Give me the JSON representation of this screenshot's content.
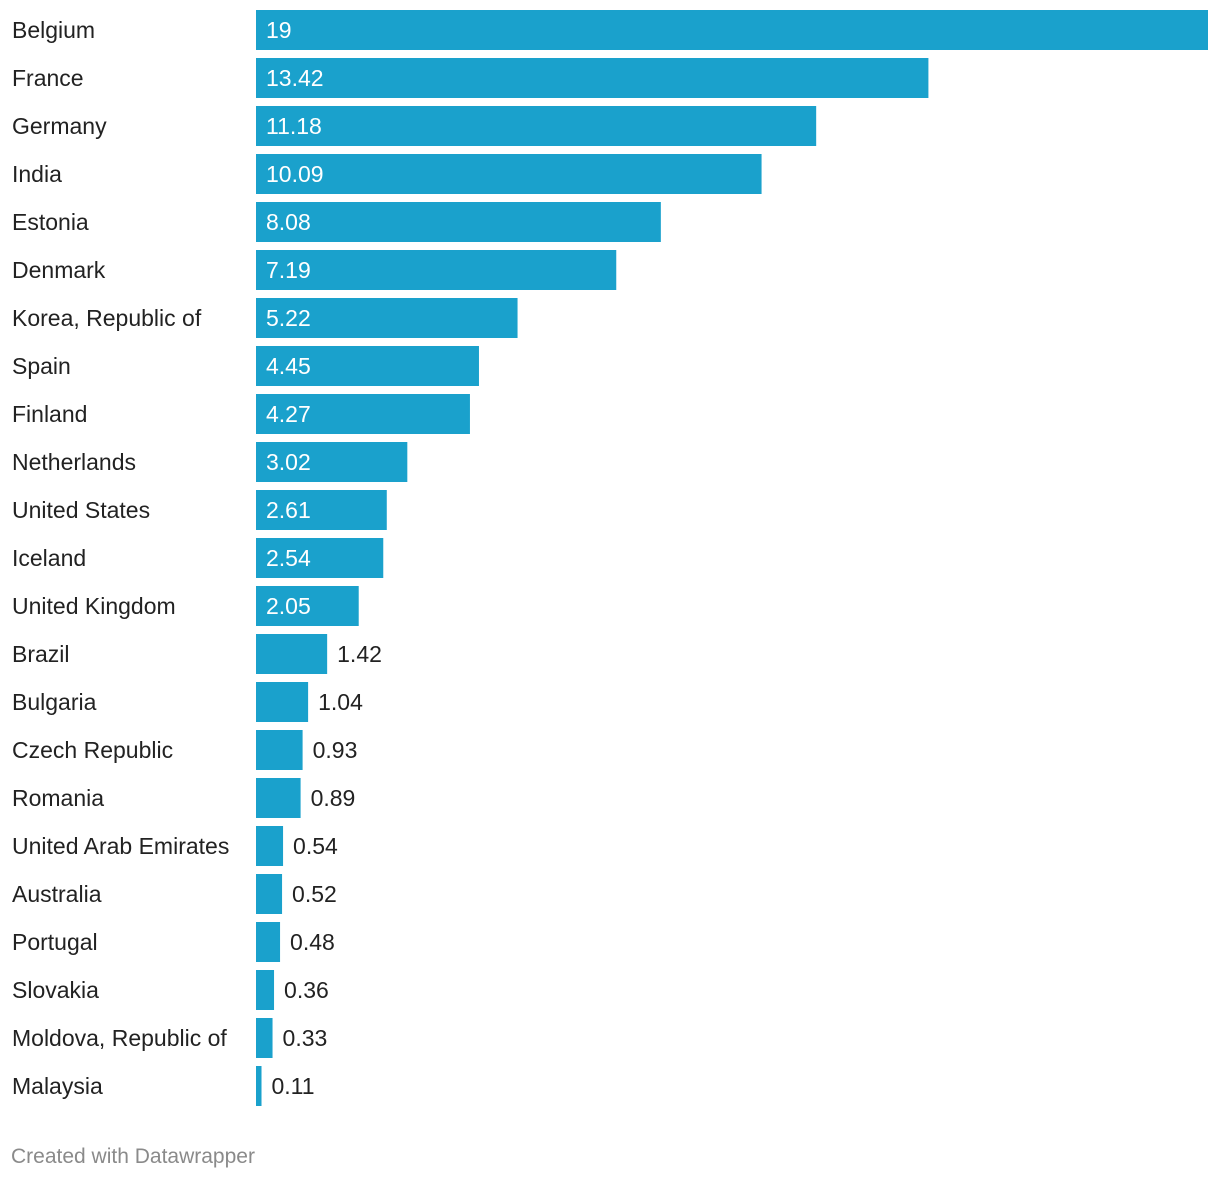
{
  "chart_data": {
    "type": "bar",
    "orientation": "horizontal",
    "title": "",
    "xlabel": "",
    "ylabel": "",
    "xlim": [
      0,
      19
    ],
    "grid": false,
    "categories": [
      "Belgium",
      "France",
      "Germany",
      "India",
      "Estonia",
      "Denmark",
      "Korea, Republic of",
      "Spain",
      "Finland",
      "Netherlands",
      "United States",
      "Iceland",
      "United Kingdom",
      "Brazil",
      "Bulgaria",
      "Czech Republic",
      "Romania",
      "United Arab Emirates",
      "Australia",
      "Portugal",
      "Slovakia",
      "Moldova, Republic of",
      "Malaysia"
    ],
    "values": [
      19,
      13.42,
      11.18,
      10.09,
      8.08,
      7.19,
      5.22,
      4.45,
      4.27,
      3.02,
      2.61,
      2.54,
      2.05,
      1.42,
      1.04,
      0.93,
      0.89,
      0.54,
      0.52,
      0.48,
      0.36,
      0.33,
      0.11
    ],
    "value_labels": [
      "19",
      "13.42",
      "11.18",
      "10.09",
      "8.08",
      "7.19",
      "5.22",
      "4.45",
      "4.27",
      "3.02",
      "2.61",
      "2.54",
      "2.05",
      "1.42",
      "1.04",
      "0.93",
      "0.89",
      "0.54",
      "0.52",
      "0.48",
      "0.36",
      "0.33",
      "0.11"
    ],
    "bar_color": "#1aa1cc",
    "label_color_inside": "#ffffff",
    "label_color_outside": "#222222"
  },
  "footer": {
    "credit": "Created with Datawrapper"
  }
}
